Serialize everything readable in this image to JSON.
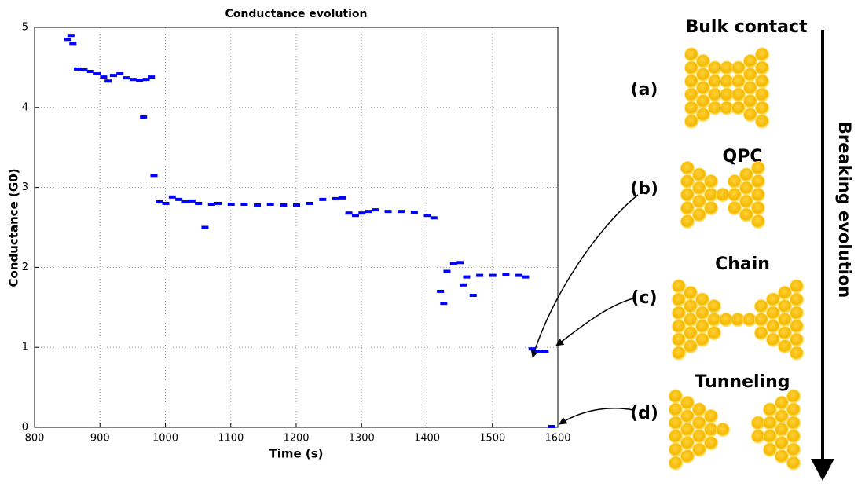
{
  "chart_data": {
    "type": "scatter",
    "title": "Conductance evolution",
    "x_label": "Time (s)",
    "y_label": "Conductance (G0)",
    "xlim": [
      800,
      1600
    ],
    "xticks": [
      800,
      900,
      1000,
      1100,
      1200,
      1300,
      1400,
      1500,
      1600
    ],
    "ylim": [
      0,
      5
    ],
    "yticks": [
      0,
      1,
      2,
      3,
      4,
      5
    ],
    "grid": true,
    "series": [
      {
        "color": "#0000ff",
        "x": [
          850,
          855,
          858,
          865,
          875,
          885,
          895,
          905,
          912,
          920,
          930,
          940,
          950,
          960,
          966,
          970,
          978,
          982,
          990,
          1000,
          1010,
          1020,
          1030,
          1040,
          1050,
          1060,
          1070,
          1080,
          1100,
          1120,
          1140,
          1160,
          1180,
          1200,
          1220,
          1240,
          1260,
          1270,
          1280,
          1290,
          1300,
          1310,
          1320,
          1340,
          1360,
          1380,
          1400,
          1410,
          1420,
          1425,
          1430,
          1440,
          1450,
          1455,
          1460,
          1470,
          1480,
          1500,
          1520,
          1540,
          1550,
          1560,
          1570,
          1580,
          1590
        ],
        "values": [
          4.85,
          4.9,
          4.8,
          4.48,
          4.47,
          4.45,
          4.42,
          4.38,
          4.33,
          4.4,
          4.42,
          4.37,
          4.35,
          4.34,
          3.88,
          4.35,
          4.38,
          3.15,
          2.82,
          2.8,
          2.88,
          2.85,
          2.82,
          2.83,
          2.8,
          2.5,
          2.79,
          2.8,
          2.79,
          2.79,
          2.78,
          2.79,
          2.78,
          2.78,
          2.8,
          2.85,
          2.86,
          2.87,
          2.68,
          2.65,
          2.68,
          2.7,
          2.72,
          2.7,
          2.7,
          2.69,
          2.65,
          2.62,
          1.7,
          1.55,
          1.95,
          2.05,
          2.06,
          1.78,
          1.88,
          1.65,
          1.9,
          1.9,
          1.91,
          1.9,
          1.88,
          0.98,
          0.95,
          0.95,
          0.01
        ]
      }
    ]
  },
  "diagram": {
    "axis_label": "Breaking evolution",
    "stages": [
      {
        "label": "(a)",
        "name": "Bulk contact"
      },
      {
        "label": "(b)",
        "name": "QPC"
      },
      {
        "label": "(c)",
        "name": "Chain"
      },
      {
        "label": "(d)",
        "name": "Tunneling"
      }
    ]
  }
}
